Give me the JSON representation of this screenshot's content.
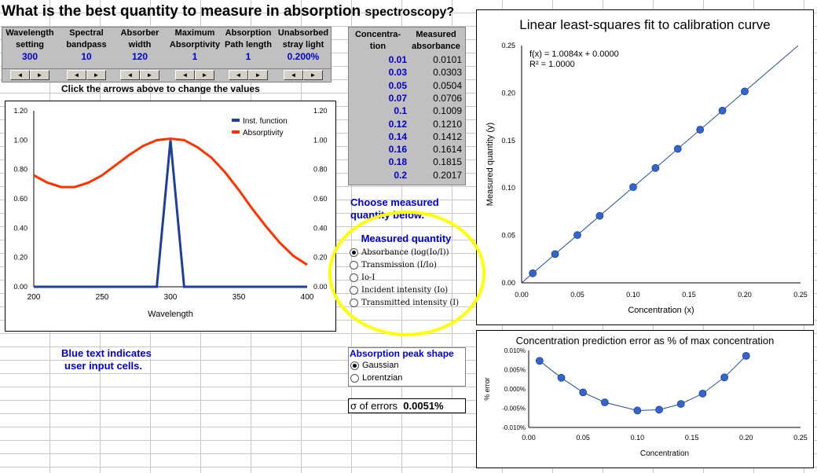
{
  "title_main": "What is the best quanti",
  "title_mid": "ty to measure in absorption ",
  "title_end": "spectroscopy?",
  "params": [
    {
      "label1": "Wavelength",
      "label2": "setting",
      "value": "300"
    },
    {
      "label1": "Spectral",
      "label2": "bandpass",
      "value": "10"
    },
    {
      "label1": "Absorber",
      "label2": "width",
      "value": "120"
    },
    {
      "label1": "Maximum",
      "label2": "Absorptivity",
      "value": "1"
    },
    {
      "label1": "Absorption",
      "label2": "Path length",
      "value": "1"
    },
    {
      "label1": "Unabsorbed",
      "label2": "stray light",
      "value": "0.200%"
    }
  ],
  "spinner": {
    "left": "◄",
    "right": "►"
  },
  "hint": "Click the arrows above to change the values",
  "table": {
    "h1a": "Concentra-",
    "h1b": "tion",
    "h2a": "Measured",
    "h2b": "absorbance",
    "rows": [
      {
        "c": "0.01",
        "a": "0.0101"
      },
      {
        "c": "0.03",
        "a": "0.0303"
      },
      {
        "c": "0.05",
        "a": "0.0504"
      },
      {
        "c": "0.07",
        "a": "0.0706"
      },
      {
        "c": "0.1",
        "a": "0.1009"
      },
      {
        "c": "0.12",
        "a": "0.1210"
      },
      {
        "c": "0.14",
        "a": "0.1412"
      },
      {
        "c": "0.16",
        "a": "0.1614"
      },
      {
        "c": "0.18",
        "a": "0.1815"
      },
      {
        "c": "0.2",
        "a": "0.2017"
      }
    ]
  },
  "choose1": "Choose measured",
  "choose2": "quantity below.",
  "measured": {
    "title": "Measured quantity",
    "options": [
      "Absorbance (log(Io/I))",
      "Transmission (I/Io)",
      "Io-I",
      "Incident intensity (Io)",
      "Transmitted intensity (I)"
    ],
    "selected": 0
  },
  "bluenote1": "Blue text indicates",
  "bluenote2": "user input cells.",
  "peak": {
    "title": "Absorption peak shape",
    "options": [
      "Gaussian",
      "Lorentzian"
    ],
    "selected": 0
  },
  "sigma": {
    "label": "σ of errors",
    "value": "0.0051%"
  },
  "colors": {
    "inst": "#1f3f99",
    "absorptivity": "#ff3300",
    "fit": "#1f4e9c",
    "point": "#3366cc"
  },
  "chart_data": [
    {
      "type": "line",
      "xlabel": "Wavelength",
      "xlim": [
        200,
        400
      ],
      "xticks": [
        200,
        250,
        300,
        350,
        400
      ],
      "ylim": [
        0,
        1.2
      ],
      "yticks": [
        "0.00",
        "0.20",
        "0.40",
        "0.60",
        "0.80",
        "1.00",
        "1.20"
      ],
      "legend": "top-right",
      "series": [
        {
          "name": "Inst. function",
          "x": [
            200,
            290,
            300,
            310,
            400
          ],
          "y": [
            0,
            0,
            1,
            0,
            0
          ]
        },
        {
          "name": "Absorptivity",
          "x": [
            200,
            210,
            220,
            230,
            240,
            250,
            260,
            270,
            280,
            290,
            300,
            310,
            320,
            330,
            340,
            350,
            360,
            370,
            380,
            390,
            400
          ],
          "y": [
            0.76,
            0.71,
            0.68,
            0.68,
            0.71,
            0.76,
            0.83,
            0.9,
            0.96,
            1.0,
            1.01,
            1.0,
            0.95,
            0.88,
            0.78,
            0.66,
            0.53,
            0.41,
            0.3,
            0.21,
            0.15
          ]
        }
      ]
    },
    {
      "type": "scatter",
      "title": "Linear least-squares fit to calibration curve",
      "xlabel": "Concentration (x)",
      "ylabel": "Measured quantity (y)",
      "xlim": [
        0,
        0.25
      ],
      "xticks": [
        "0.00",
        "0.05",
        "0.10",
        "0.15",
        "0.20",
        "0.25"
      ],
      "ylim": [
        0,
        0.25
      ],
      "yticks": [
        "0.00",
        "0.05",
        "0.10",
        "0.15",
        "0.20",
        "0.25"
      ],
      "equation": "f(x) = 1.0084x + 0.0000",
      "r2": "R² = 1.0000",
      "fit": {
        "slope": 1.0084,
        "intercept": 0
      },
      "x": [
        0.01,
        0.03,
        0.05,
        0.07,
        0.1,
        0.12,
        0.14,
        0.16,
        0.18,
        0.2
      ],
      "y": [
        0.0101,
        0.0303,
        0.0504,
        0.0706,
        0.1009,
        0.121,
        0.1412,
        0.1614,
        0.1815,
        0.2017
      ]
    },
    {
      "type": "line",
      "title": "Concentration prediction error as % of max concentration",
      "xlabel": "Concentration",
      "ylabel": "% error",
      "xlim": [
        0,
        0.25
      ],
      "xticks": [
        "0.00",
        "0.05",
        "0.10",
        "0.15",
        "0.20",
        "0.25"
      ],
      "ylim": [
        -0.01,
        0.01
      ],
      "yticks": [
        "-0.010%",
        "-0.005%",
        "0.000%",
        "0.005%",
        "0.010%"
      ],
      "x": [
        0.01,
        0.03,
        0.05,
        0.07,
        0.1,
        0.12,
        0.14,
        0.16,
        0.18,
        0.2
      ],
      "y": [
        0.0073,
        0.0029,
        -0.0009,
        -0.0035,
        -0.0056,
        -0.0054,
        -0.0039,
        -0.0012,
        0.003,
        0.0086
      ]
    }
  ]
}
